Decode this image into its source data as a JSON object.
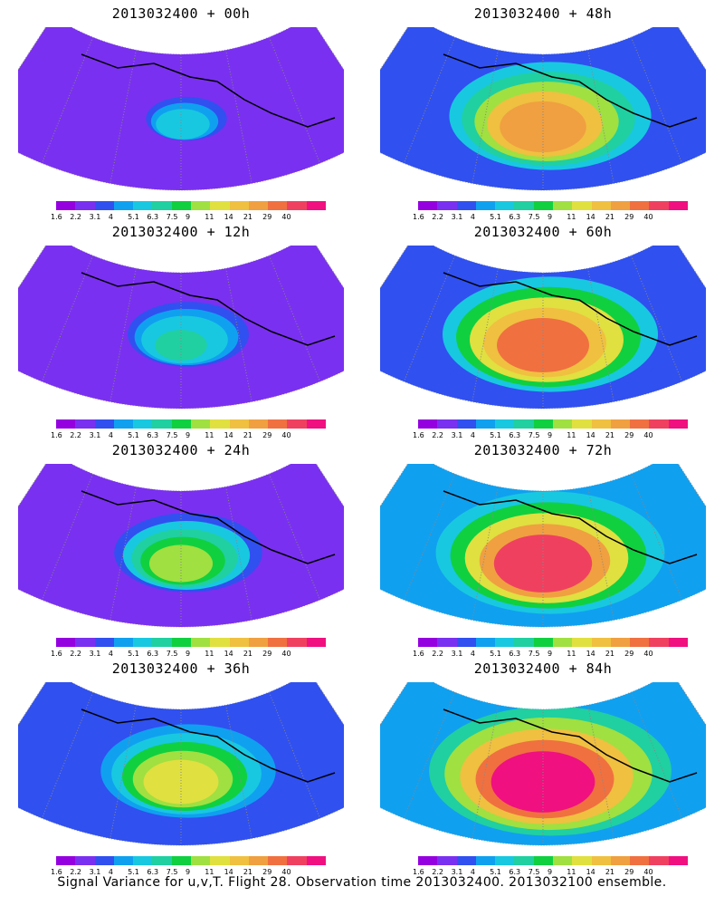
{
  "panels": [
    {
      "title": "2013032400  + 00h",
      "intensity": 0.15,
      "spread": 0.35
    },
    {
      "title": "2013032400  + 48h",
      "intensity": 0.55,
      "spread": 0.75
    },
    {
      "title": "2013032400  + 12h",
      "intensity": 0.22,
      "spread": 0.45
    },
    {
      "title": "2013032400  + 60h",
      "intensity": 0.6,
      "spread": 0.8
    },
    {
      "title": "2013032400  + 24h",
      "intensity": 0.32,
      "spread": 0.55
    },
    {
      "title": "2013032400  + 72h",
      "intensity": 0.66,
      "spread": 0.85
    },
    {
      "title": "2013032400  + 36h",
      "intensity": 0.42,
      "spread": 0.65
    },
    {
      "title": "2013032400  + 84h",
      "intensity": 0.72,
      "spread": 0.9
    }
  ],
  "colorbar": {
    "colors": [
      "#9500e0",
      "#7a30f0",
      "#3050f0",
      "#10a0f0",
      "#18c8e0",
      "#20d0a0",
      "#10d040",
      "#a0e040",
      "#e0e040",
      "#f0c040",
      "#f0a040",
      "#f07040",
      "#f04060",
      "#f01080"
    ],
    "labels": [
      "1.6",
      "2.2",
      "3.1",
      "4",
      "5.1",
      "6.3",
      "7.5",
      "9",
      "11",
      "14",
      "21",
      "29",
      "40"
    ]
  },
  "caption": "Signal Variance for u,v,T. Flight 28. Observation time 2013032400. 2013032100 ensemble."
}
